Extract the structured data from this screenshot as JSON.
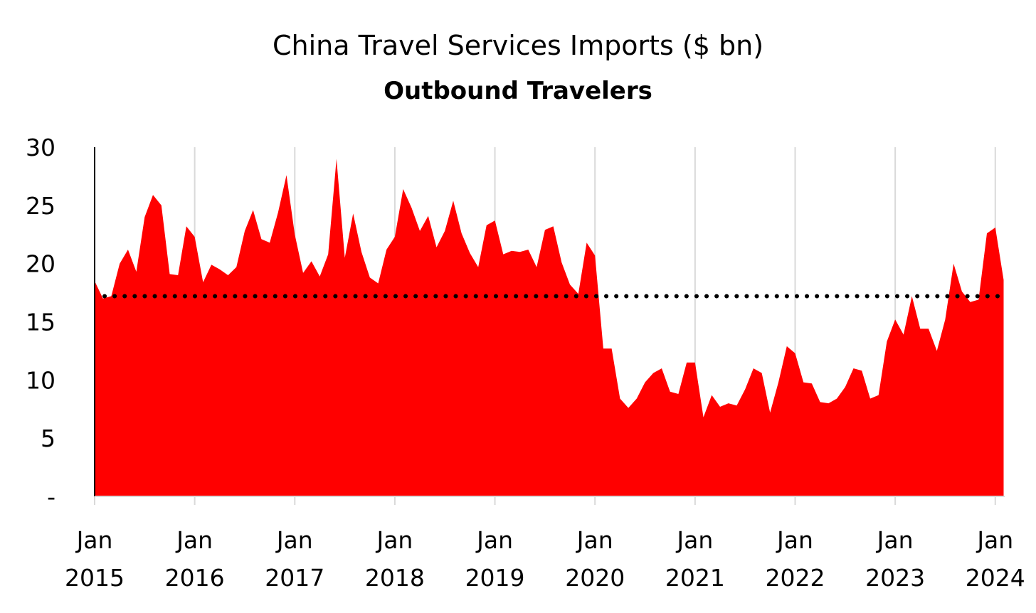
{
  "chart_data": {
    "type": "area",
    "title": "China Travel Services Imports ($ bn)",
    "subtitle": "Outbound Travelers",
    "xlabel": "",
    "ylabel": "",
    "ylim": [
      0,
      30
    ],
    "yticks": [
      {
        "value": 0,
        "label": "-"
      },
      {
        "value": 5,
        "label": "5"
      },
      {
        "value": 10,
        "label": "10"
      },
      {
        "value": 15,
        "label": "15"
      },
      {
        "value": 20,
        "label": "20"
      },
      {
        "value": 25,
        "label": "25"
      },
      {
        "value": 30,
        "label": "30"
      }
    ],
    "xticks": [
      {
        "month_index": 0,
        "line1": "Jan",
        "line2": "2015"
      },
      {
        "month_index": 12,
        "line1": "Jan",
        "line2": "2016"
      },
      {
        "month_index": 24,
        "line1": "Jan",
        "line2": "2017"
      },
      {
        "month_index": 36,
        "line1": "Jan",
        "line2": "2018"
      },
      {
        "month_index": 48,
        "line1": "Jan",
        "line2": "2019"
      },
      {
        "month_index": 60,
        "line1": "Jan",
        "line2": "2020"
      },
      {
        "month_index": 72,
        "line1": "Jan",
        "line2": "2021"
      },
      {
        "month_index": 84,
        "line1": "Jan",
        "line2": "2022"
      },
      {
        "month_index": 96,
        "line1": "Jan",
        "line2": "2023"
      },
      {
        "month_index": 108,
        "line1": "Jan",
        "line2": "2024"
      }
    ],
    "grid": "vertical",
    "series": [
      {
        "color": "#ff0000",
        "start": "Jan 2015",
        "frequency": "monthly",
        "values": [
          18.5,
          17.0,
          17.2,
          20.0,
          21.2,
          19.3,
          24.0,
          25.9,
          25.0,
          19.1,
          19.0,
          23.2,
          22.3,
          18.4,
          19.9,
          19.5,
          19.0,
          19.7,
          22.8,
          24.6,
          22.1,
          21.8,
          24.4,
          27.6,
          22.5,
          19.2,
          20.2,
          18.9,
          20.8,
          29.0,
          20.5,
          24.3,
          21.0,
          18.8,
          18.3,
          21.2,
          22.3,
          26.4,
          24.8,
          22.8,
          24.1,
          21.4,
          22.8,
          25.4,
          22.6,
          20.9,
          19.7,
          23.3,
          23.7,
          20.8,
          21.1,
          21.0,
          21.2,
          19.7,
          22.9,
          23.2,
          20.1,
          18.2,
          17.4,
          21.8,
          20.7,
          12.7,
          12.7,
          8.4,
          7.6,
          8.4,
          9.8,
          10.6,
          11.0,
          9.0,
          8.8,
          11.5,
          11.5,
          6.8,
          8.7,
          7.7,
          8.0,
          7.8,
          9.2,
          11.0,
          10.6,
          7.2,
          9.8,
          12.9,
          12.3,
          9.8,
          9.7,
          8.1,
          8.0,
          8.4,
          9.4,
          11.0,
          10.8,
          8.4,
          8.7,
          13.3,
          15.2,
          13.9,
          17.2,
          14.4,
          14.4,
          12.5,
          15.2,
          20.0,
          17.6,
          16.7,
          16.9,
          22.6,
          23.1,
          18.6
        ]
      }
    ],
    "reference_lines": [
      {
        "value": 17.2,
        "style": "dotted",
        "color": "#000000"
      }
    ]
  }
}
